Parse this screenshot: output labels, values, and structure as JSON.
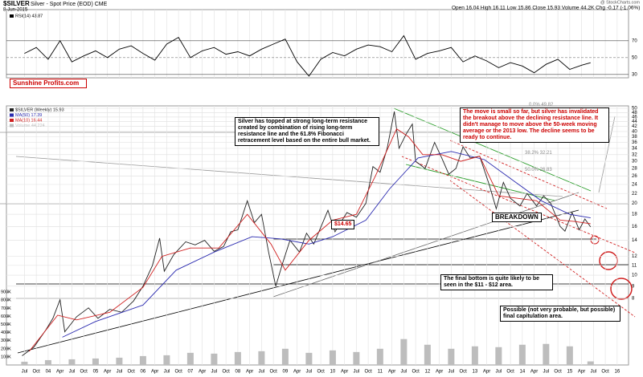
{
  "header": {
    "symbol": "$SILVER",
    "description": "Silver - Spot Price (EOD) CME",
    "date": "8-Jun-2015",
    "quote": "Open 16.04 High 16.11 Low 15.86 Close 15.93 Volume 44.2K Chg -0.17 (-1.06%)",
    "source": "@ StockCharts.com",
    "logo": "Sunshine Profits.com"
  },
  "annotations": {
    "top": "Silver has topped at strong long-term resistance created by combination of rising long-term resistance line and the 61.8% Fibonacci retracement level based on the entire bull market.",
    "move": "The move is small so far, but silver has invalidated the breakout above the declining resistance line. It didn't manage to move above the 50-week moving average or the 2013 low. The decline seems to be ready to continue.",
    "fib0": "0.0% 49.82",
    "fib38": "38.2% 32.21",
    "fib50": "50.0% 26.83",
    "level": "$14.65",
    "breakdown": "BREAKDOWN",
    "bottom": "The final bottom is quite likely to be seen in the $11 - $12 area.",
    "capitulation": "Possible (not very probable, but possible) final capitulation area."
  },
  "chart_data": [
    {
      "type": "line",
      "xlim": [
        2003.12,
        2016.24
      ],
      "ylim": [
        26,
        107
      ],
      "yticks": [
        30,
        50,
        70
      ],
      "grid": true,
      "series": [
        {
          "name": "RSI(14) 43.87",
          "color": "#000000",
          "x": [
            2003.5,
            2003.75,
            2004,
            2004.25,
            2004.5,
            2004.75,
            2005,
            2005.25,
            2005.5,
            2005.75,
            2006,
            2006.25,
            2006.5,
            2006.75,
            2007,
            2007.25,
            2007.5,
            2007.75,
            2008,
            2008.25,
            2008.5,
            2008.75,
            2009,
            2009.25,
            2009.5,
            2009.75,
            2010,
            2010.25,
            2010.5,
            2010.75,
            2011,
            2011.25,
            2011.5,
            2011.75,
            2012,
            2012.25,
            2012.5,
            2012.75,
            2013,
            2013.25,
            2013.5,
            2013.75,
            2014,
            2014.25,
            2014.5,
            2014.75,
            2015,
            2015.25,
            2015.44
          ],
          "values": [
            55,
            62,
            48,
            70,
            45,
            52,
            58,
            50,
            60,
            64,
            55,
            47,
            66,
            74,
            50,
            58,
            62,
            54,
            57,
            52,
            60,
            66,
            72,
            45,
            28,
            48,
            56,
            52,
            60,
            65,
            63,
            57,
            76,
            48,
            55,
            58,
            62,
            45,
            52,
            46,
            38,
            44,
            40,
            32,
            42,
            48,
            36,
            41,
            43.87
          ]
        }
      ]
    },
    {
      "type": "line",
      "log": true,
      "xlim": [
        2003.12,
        2016.24
      ],
      "ylim": [
        4.21,
        51.2
      ],
      "y2lim": [
        0,
        960000
      ],
      "grid": true,
      "yticks": [
        8,
        9,
        10,
        11,
        12,
        14,
        16,
        18,
        20,
        22,
        24,
        26,
        28,
        30,
        32,
        34,
        36,
        38,
        40,
        42,
        44,
        46,
        48,
        50
      ],
      "y2ticks": [
        {
          "value": 100000,
          "label": "100K"
        },
        {
          "value": 200000,
          "label": "200K"
        },
        {
          "value": 300000,
          "label": "300K"
        },
        {
          "value": 400000,
          "label": "400K"
        },
        {
          "value": 500000,
          "label": "500K"
        },
        {
          "value": 600000,
          "label": "600K"
        },
        {
          "value": 700000,
          "label": "700K"
        },
        {
          "value": 800000,
          "label": "800K"
        },
        {
          "value": 900000,
          "label": "900K"
        }
      ],
      "xticks": [
        {
          "value": 2003.5,
          "label": "Jul"
        },
        {
          "value": 2003.75,
          "label": "Oct"
        },
        {
          "value": 2004,
          "label": "04"
        },
        {
          "value": 2004.25,
          "label": "Apr"
        },
        {
          "value": 2004.5,
          "label": "Jul"
        },
        {
          "value": 2004.75,
          "label": "Oct"
        },
        {
          "value": 2005,
          "label": "05"
        },
        {
          "value": 2005.25,
          "label": "Apr"
        },
        {
          "value": 2005.5,
          "label": "Jul"
        },
        {
          "value": 2005.75,
          "label": "Oct"
        },
        {
          "value": 2006,
          "label": "06"
        },
        {
          "value": 2006.25,
          "label": "Apr"
        },
        {
          "value": 2006.5,
          "label": "Jul"
        },
        {
          "value": 2006.75,
          "label": "Oct"
        },
        {
          "value": 2007,
          "label": "07"
        },
        {
          "value": 2007.25,
          "label": "Apr"
        },
        {
          "value": 2007.5,
          "label": "Jul"
        },
        {
          "value": 2007.75,
          "label": "Oct"
        },
        {
          "value": 2008,
          "label": "08"
        },
        {
          "value": 2008.25,
          "label": "Apr"
        },
        {
          "value": 2008.5,
          "label": "Jul"
        },
        {
          "value": 2008.75,
          "label": "Oct"
        },
        {
          "value": 2009,
          "label": "09"
        },
        {
          "value": 2009.25,
          "label": "Apr"
        },
        {
          "value": 2009.5,
          "label": "Jul"
        },
        {
          "value": 2009.75,
          "label": "Oct"
        },
        {
          "value": 2010,
          "label": "10"
        },
        {
          "value": 2010.25,
          "label": "Apr"
        },
        {
          "value": 2010.5,
          "label": "Jul"
        },
        {
          "value": 2010.75,
          "label": "Oct"
        },
        {
          "value": 2011,
          "label": "11"
        },
        {
          "value": 2011.25,
          "label": "Apr"
        },
        {
          "value": 2011.5,
          "label": "Jul"
        },
        {
          "value": 2011.75,
          "label": "Oct"
        },
        {
          "value": 2012,
          "label": "12"
        },
        {
          "value": 2012.25,
          "label": "Apr"
        },
        {
          "value": 2012.5,
          "label": "Jul"
        },
        {
          "value": 2012.75,
          "label": "Oct"
        },
        {
          "value": 2013,
          "label": "13"
        },
        {
          "value": 2013.25,
          "label": "Apr"
        },
        {
          "value": 2013.5,
          "label": "Jul"
        },
        {
          "value": 2013.75,
          "label": "Oct"
        },
        {
          "value": 2014,
          "label": "14"
        },
        {
          "value": 2014.25,
          "label": "Apr"
        },
        {
          "value": 2014.5,
          "label": "Jul"
        },
        {
          "value": 2014.75,
          "label": "Oct"
        },
        {
          "value": 2015,
          "label": "15"
        },
        {
          "value": 2015.25,
          "label": "Apr"
        },
        {
          "value": 2015.5,
          "label": "Jul"
        },
        {
          "value": 2015.75,
          "label": "Oct"
        },
        {
          "value": 2016,
          "label": "16"
        }
      ],
      "series": [
        {
          "name": "$SILVER (Weekly) 15.93",
          "color": "#222222",
          "x": [
            2003.45,
            2003.7,
            2003.95,
            2004.1,
            2004.25,
            2004.35,
            2004.6,
            2004.85,
            2005.05,
            2005.3,
            2005.55,
            2005.8,
            2006.0,
            2006.2,
            2006.35,
            2006.45,
            2006.65,
            2006.9,
            2007.1,
            2007.3,
            2007.5,
            2007.7,
            2007.85,
            2008.0,
            2008.2,
            2008.35,
            2008.5,
            2008.65,
            2008.8,
            2008.95,
            2009.1,
            2009.3,
            2009.45,
            2009.6,
            2009.9,
            2010.05,
            2010.3,
            2010.5,
            2010.7,
            2010.85,
            2011.0,
            2011.15,
            2011.3,
            2011.4,
            2011.55,
            2011.68,
            2011.75,
            2011.95,
            2012.15,
            2012.3,
            2012.45,
            2012.6,
            2012.75,
            2012.9,
            2013.1,
            2013.3,
            2013.45,
            2013.6,
            2013.75,
            2013.95,
            2014.1,
            2014.3,
            2014.45,
            2014.6,
            2014.8,
            2014.9,
            2015.05,
            2015.2,
            2015.32,
            2015.44
          ],
          "values": [
            4.6,
            5.0,
            5.9,
            6.6,
            7.9,
            5.8,
            6.7,
            7.3,
            6.6,
            7.2,
            7.0,
            7.8,
            9.0,
            11.0,
            14.3,
            10.4,
            12.2,
            13.8,
            13.4,
            14.0,
            12.6,
            13.2,
            15.2,
            15.5,
            20.5,
            16.6,
            18.0,
            12.5,
            9.0,
            11.3,
            14.0,
            12.5,
            15.0,
            13.5,
            18.7,
            15.2,
            18.3,
            17.5,
            20.0,
            28.5,
            27.0,
            34.0,
            48.5,
            34.0,
            39.0,
            43.0,
            30.0,
            28.0,
            36.0,
            31.0,
            26.5,
            28.0,
            34.5,
            31.0,
            31.5,
            24.0,
            19.0,
            24.5,
            21.0,
            19.5,
            22.0,
            19.5,
            21.5,
            20.0,
            16.0,
            15.3,
            18.3,
            15.5,
            17.2,
            15.93
          ]
        },
        {
          "name": "MA(50) 17.39",
          "color": "#2b2bb0",
          "x": [
            2004.3,
            2005,
            2006,
            2006.7,
            2007.5,
            2008.3,
            2008.9,
            2009.5,
            2010,
            2010.7,
            2011.2,
            2011.8,
            2012.5,
            2013.2,
            2013.8,
            2014.4,
            2015,
            2015.44
          ],
          "values": [
            5.5,
            6.4,
            7.5,
            10.5,
            12.5,
            14.5,
            14.2,
            13.5,
            14.5,
            17,
            23,
            31,
            33,
            30.5,
            25,
            20.5,
            18,
            17.39
          ]
        },
        {
          "name": "MA(10) 16.44",
          "color": "#d02020",
          "x": [
            2003.6,
            2004.2,
            2004.6,
            2005.3,
            2006.0,
            2006.4,
            2007.0,
            2007.6,
            2008.2,
            2008.7,
            2009.0,
            2009.5,
            2010.0,
            2010.5,
            2010.9,
            2011.35,
            2011.6,
            2011.9,
            2012.3,
            2012.7,
            2013.1,
            2013.5,
            2013.9,
            2014.3,
            2014.8,
            2015.1,
            2015.44
          ],
          "values": [
            4.8,
            6.8,
            6.5,
            7.0,
            8.9,
            12.0,
            13.0,
            13.0,
            18.0,
            13.5,
            10.5,
            14.0,
            17.0,
            18.0,
            26.0,
            41.0,
            38.0,
            32.0,
            32.0,
            30.0,
            31.5,
            21.5,
            21.0,
            20.5,
            17.0,
            16.8,
            16.44
          ]
        },
        {
          "name": "Volume 44,224",
          "color": "#bdbdbd",
          "axis": "y2",
          "x": [
            2003.5,
            2004,
            2004.5,
            2005,
            2005.5,
            2006,
            2006.5,
            2007,
            2007.5,
            2008,
            2008.5,
            2009,
            2009.5,
            2010,
            2010.5,
            2011,
            2011.5,
            2012,
            2012.5,
            2013,
            2013.5,
            2014,
            2014.5,
            2015,
            2015.44
          ],
          "values": [
            40000,
            60000,
            70000,
            80000,
            90000,
            110000,
            120000,
            150000,
            140000,
            160000,
            170000,
            200000,
            150000,
            180000,
            160000,
            200000,
            320000,
            250000,
            200000,
            230000,
            220000,
            250000,
            260000,
            230000,
            44224
          ]
        }
      ]
    }
  ]
}
